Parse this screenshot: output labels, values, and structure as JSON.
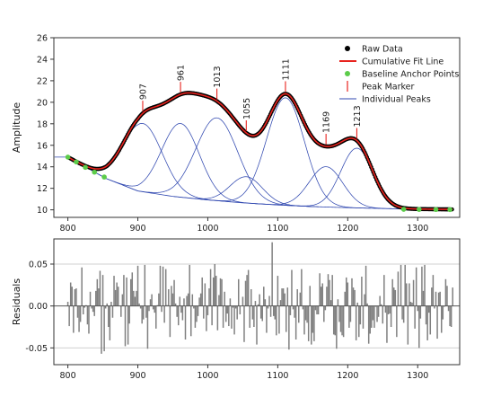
{
  "chart_data": [
    {
      "type": "line",
      "ylabel": "Amplitude",
      "xlim": [
        780,
        1360
      ],
      "ylim": [
        9.3,
        26
      ],
      "xticks": [
        800,
        900,
        1000,
        1100,
        1200,
        1300
      ],
      "yticks": [
        10,
        12,
        14,
        16,
        18,
        20,
        22,
        24,
        26
      ],
      "legend": {
        "placement": "top-right",
        "entries": [
          "Raw Data",
          "Cumulative Fit Line",
          "Baseline Anchor Points",
          "Peak Marker",
          "Individual Peaks"
        ]
      },
      "colors": {
        "raw": "#000000",
        "cumulative": "#e8231e",
        "anchors": "#5ccc4a",
        "peak_marker": "#e8231e",
        "individual": "#3048b0"
      },
      "baseline": [
        [
          800,
          14.9
        ],
        [
          855,
          12.9
        ],
        [
          900,
          11.75
        ],
        [
          950,
          11.25
        ],
        [
          1000,
          10.92
        ],
        [
          1050,
          10.65
        ],
        [
          1100,
          10.45
        ],
        [
          1150,
          10.3
        ],
        [
          1200,
          10.2
        ],
        [
          1250,
          10.12
        ],
        [
          1300,
          10.07
        ],
        [
          1350,
          10.04
        ]
      ],
      "baseline_anchor_points": [
        {
          "x": 800,
          "y": 14.9
        },
        {
          "x": 812,
          "y": 14.45
        },
        {
          "x": 825,
          "y": 13.95
        },
        {
          "x": 838,
          "y": 13.5
        },
        {
          "x": 852,
          "y": 13.05
        },
        {
          "x": 1280,
          "y": 10.05
        },
        {
          "x": 1302,
          "y": 10.04
        },
        {
          "x": 1326,
          "y": 10.03
        },
        {
          "x": 1346,
          "y": 10.02
        }
      ],
      "peaks": [
        {
          "center": 907,
          "height": 6.35,
          "width": 28,
          "label": "907"
        },
        {
          "center": 961,
          "height": 6.85,
          "width": 27,
          "label": "961"
        },
        {
          "center": 1013,
          "height": 7.7,
          "width": 30,
          "label": "1013"
        },
        {
          "center": 1055,
          "height": 2.45,
          "width": 23,
          "label": "1055"
        },
        {
          "center": 1111,
          "height": 10.0,
          "width": 27,
          "label": "1111"
        },
        {
          "center": 1169,
          "height": 3.75,
          "width": 24,
          "label": "1169"
        },
        {
          "center": 1213,
          "height": 5.55,
          "width": 23,
          "label": "1213"
        }
      ]
    },
    {
      "type": "bar",
      "ylabel": "Residuals",
      "xlim": [
        780,
        1360
      ],
      "ylim": [
        -0.07,
        0.08
      ],
      "xticks": [
        800,
        900,
        1000,
        1100,
        1200,
        1300
      ],
      "yticks": [
        -0.05,
        0.0,
        0.05
      ],
      "ytick_labels": [
        "-0.05",
        "0.00",
        "0.05"
      ],
      "grid": true,
      "colors": {
        "bars": "#808080",
        "zero_line": "#555555",
        "grid": "#d0d0d0"
      },
      "x_start": 800,
      "x_end": 1350,
      "x_step": 2,
      "values": [
        0.005,
        -0.024,
        0.028,
        0.023,
        -0.032,
        0.02,
        0.021,
        -0.014,
        -0.031,
        -0.019,
        0.046,
        -0.01,
        -0.002,
        0.001,
        -0.022,
        -0.033,
        0.017,
        -0.003,
        -0.007,
        -0.012,
        0.018,
        0.032,
        0.021,
        0.042,
        -0.057,
        0.037,
        -0.054,
        -0.003,
        0.003,
        -0.025,
        -0.041,
        0.005,
        -0.014,
        0.036,
        0.019,
        0.028,
        0.023,
        0.0,
        -0.013,
        0.014,
        0.037,
        -0.048,
        0.034,
        -0.046,
        -0.021,
        0.032,
        0.04,
        0.018,
        0.011,
        0.018,
        0.048,
        0.003,
        -0.003,
        -0.021,
        -0.016,
        0.049,
        -0.014,
        -0.051,
        -0.006,
        0.008,
        0.014,
        -0.004,
        -0.008,
        -0.027,
        0.001,
        0.015,
        0.048,
        -0.007,
        0.047,
        -0.02,
        0.044,
        0.001,
        0.02,
        -0.037,
        0.024,
        0.015,
        0.031,
        0.003,
        -0.013,
        -0.023,
        0.011,
        -0.008,
        -0.017,
        0.009,
        -0.04,
        0.012,
        0.015,
        0.049,
        -0.036,
        0.014,
        -0.003,
        -0.026,
        -0.019,
        -0.012,
        0.01,
        0.015,
        0.034,
        -0.015,
        0.027,
        -0.03,
        -0.011,
        0.021,
        0.044,
        -0.023,
        0.034,
        0.05,
        0.036,
        -0.029,
        0.013,
        0.033,
        0.032,
        -0.026,
        0.017,
        -0.019,
        -0.009,
        -0.024,
        0.009,
        -0.027,
        -0.002,
        -0.034,
        -0.003,
        -0.016,
        0.032,
        -0.01,
        0.0,
        0.011,
        -0.043,
        0.03,
        0.037,
        0.043,
        -0.026,
        0.02,
        -0.016,
        -0.025,
        0.006,
        -0.046,
        0.002,
        0.014,
        -0.015,
        -0.018,
        0.023,
        0.008,
        -0.032,
        -0.003,
        0.012,
        -0.013,
        0.076,
        -0.012,
        -0.016,
        -0.035,
        0.036,
        -0.033,
        0.007,
        0.021,
        0.021,
        0.015,
        -0.031,
        0.022,
        -0.052,
        -0.011,
        0.043,
        -0.004,
        -0.014,
        -0.04,
        0.02,
        -0.02,
        0.016,
        0.044,
        -0.004,
        -0.034,
        -0.017,
        -0.02,
        -0.042,
        0.024,
        -0.046,
        -0.032,
        -0.042,
        -0.005,
        -0.01,
        -0.01,
        0.039,
        0.023,
        0.027,
        -0.019,
        -0.005,
        0.023,
        0.038,
        0.031,
        0.007,
        0.037,
        -0.034,
        -0.035,
        -0.051,
        0.008,
        -0.019,
        -0.031,
        -0.035,
        -0.037,
        0.017,
        0.034,
        0.028,
        -0.026,
        -0.019,
        0.033,
        0.022,
        0.019,
        -0.041,
        0.004,
        -0.037,
        -0.022,
        0.035,
        -0.027,
        0.014,
        0.048,
        0.003,
        -0.045,
        -0.033,
        -0.026,
        -0.017,
        -0.026,
        -0.001,
        -0.019,
        -0.013,
        0.012,
        0.002,
        -0.021,
        0.037,
        -0.008,
        -0.044,
        -0.01,
        -0.009,
        -0.025,
        0.032,
        0.022,
        0.019,
        -0.037,
        0.041,
        0.001,
        0.049,
        -0.016,
        -0.02,
        0.049,
        0.027,
        -0.046,
        0.027,
        0.005,
        0.004,
        0.031,
        -0.027,
        0.046,
        -0.006,
        -0.05,
        -0.015,
        0.047,
        0.018,
        0.049,
        -0.022,
        -0.041,
        -0.008,
        -0.034,
        0.022,
        0.037,
        -0.003,
        0.017,
        -0.039,
        0.016,
        0.017,
        -0.032,
        -0.016,
        -0.001,
        0.032,
        0.024,
        -0.006,
        -0.024,
        -0.025,
        0.022
      ]
    }
  ]
}
